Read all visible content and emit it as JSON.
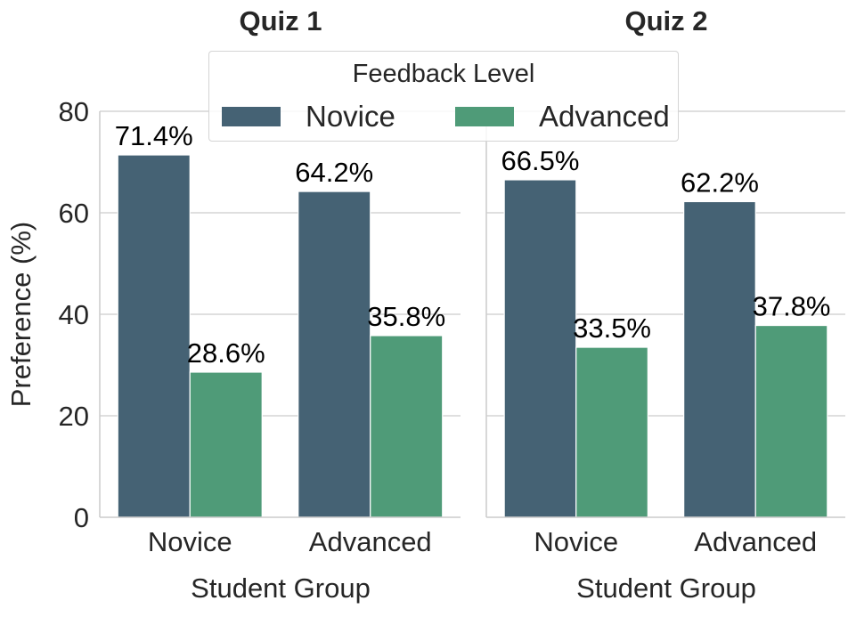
{
  "chart_data": {
    "type": "bar",
    "ylabel": "Preference (%)",
    "ylim": [
      0,
      80
    ],
    "yticks": [
      0,
      20,
      40,
      60,
      80
    ],
    "grid": true,
    "legend": {
      "title": "Feedback Level",
      "placement": "top-center",
      "entries": [
        "Novice",
        "Advanced"
      ]
    },
    "colors": {
      "Novice": "#456274",
      "Advanced": "#4f9b78"
    },
    "panels": [
      {
        "title": "Quiz 1",
        "xlabel": "Student Group",
        "categories": [
          "Novice",
          "Advanced"
        ],
        "series": [
          {
            "name": "Novice",
            "values": [
              71.4,
              64.2
            ],
            "labels": [
              "71.4%",
              "64.2%"
            ]
          },
          {
            "name": "Advanced",
            "values": [
              28.6,
              35.8
            ],
            "labels": [
              "28.6%",
              "35.8%"
            ]
          }
        ]
      },
      {
        "title": "Quiz 2",
        "xlabel": "Student Group",
        "categories": [
          "Novice",
          "Advanced"
        ],
        "series": [
          {
            "name": "Novice",
            "values": [
              66.5,
              62.2
            ],
            "labels": [
              "66.5%",
              "62.2%"
            ]
          },
          {
            "name": "Advanced",
            "values": [
              33.5,
              37.8
            ],
            "labels": [
              "33.5%",
              "37.8%"
            ]
          }
        ]
      }
    ]
  }
}
